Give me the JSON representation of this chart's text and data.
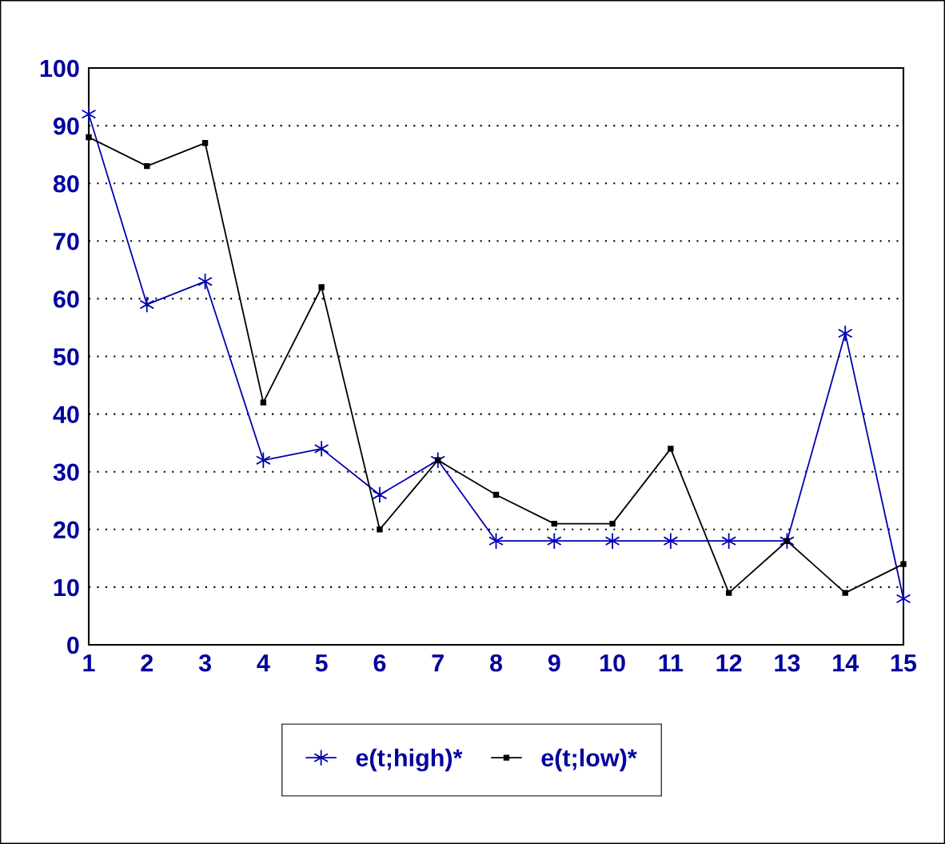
{
  "chart_data": {
    "type": "line",
    "x": [
      1,
      2,
      3,
      4,
      5,
      6,
      7,
      8,
      9,
      10,
      11,
      12,
      13,
      14,
      15
    ],
    "series": [
      {
        "name": "e(t;high)*",
        "color": "#0000b0",
        "marker": "cross",
        "values": [
          92,
          59,
          63,
          32,
          34,
          26,
          32,
          18,
          18,
          18,
          18,
          18,
          18,
          54,
          8
        ]
      },
      {
        "name": "e(t;low)*",
        "color": "#000000",
        "marker": "square",
        "values": [
          88,
          83,
          87,
          42,
          62,
          20,
          32,
          26,
          21,
          21,
          34,
          9,
          18,
          9,
          14
        ]
      }
    ],
    "xlim": [
      1,
      15
    ],
    "xticks": [
      1,
      2,
      3,
      4,
      5,
      6,
      7,
      8,
      9,
      10,
      11,
      12,
      13,
      14,
      15
    ],
    "ylim": [
      0,
      100
    ],
    "yticks": [
      0,
      10,
      20,
      30,
      40,
      50,
      60,
      70,
      80,
      90,
      100
    ],
    "grid": "y",
    "legend": "bottom",
    "line_style": "solid"
  }
}
